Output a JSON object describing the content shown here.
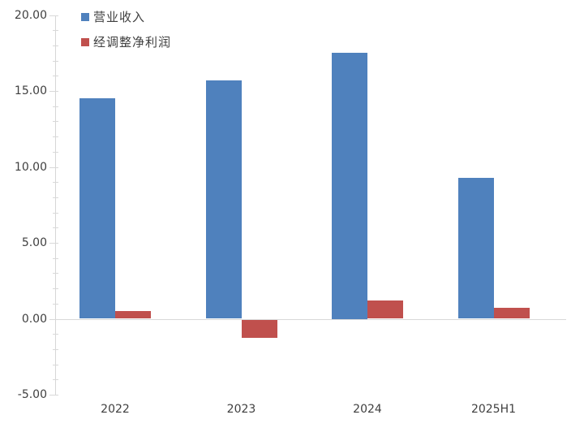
{
  "chart_data": {
    "type": "bar",
    "title": "",
    "xlabel": "",
    "ylabel": "",
    "categories": [
      "2022",
      "2023",
      "2024",
      "2025H1"
    ],
    "series": [
      {
        "key": "revenue",
        "name": "营业收入",
        "color": "#4f81bd",
        "values": [
          14.5,
          15.7,
          17.5,
          9.3
        ]
      },
      {
        "key": "adjusted-net-profit",
        "name": "经调整净利润",
        "color": "#c0504d",
        "values": [
          0.5,
          -1.2,
          1.2,
          0.7
        ]
      }
    ],
    "ylim": [
      -5,
      20
    ],
    "y_major_step": 5,
    "y_minor_step": 1,
    "y_tick_labels": [
      "20.00",
      "15.00",
      "10.00",
      "5.00",
      "0.00",
      "-5.00"
    ],
    "grid": "zero-baseline-only",
    "legend_position": "top-left-inside",
    "axis_color": "#d9d9d9",
    "text_color": "#3f3f3f"
  }
}
